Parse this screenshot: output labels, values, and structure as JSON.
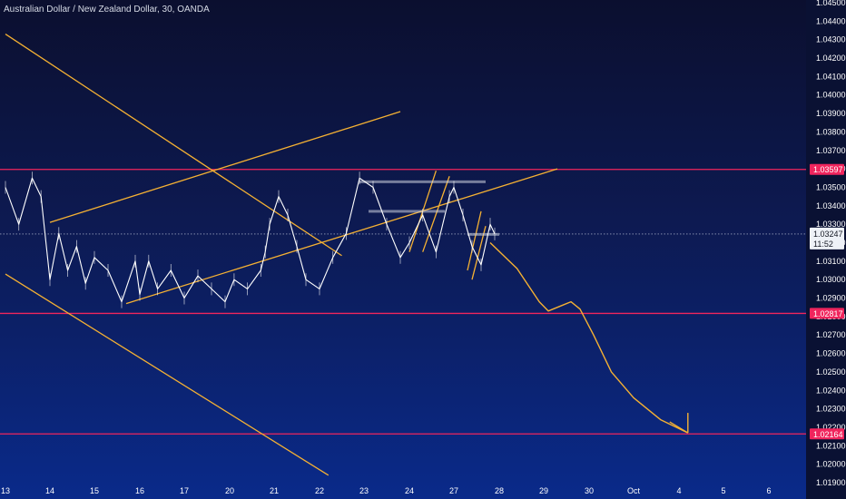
{
  "chart_data": {
    "type": "line",
    "title": "Australian Dollar / New Zealand Dollar, 30, OANDA",
    "x_tick_labels": [
      "13",
      "14",
      "15",
      "16",
      "17",
      "20",
      "21",
      "22",
      "23",
      "24",
      "27",
      "28",
      "29",
      "30",
      "Oct",
      "4",
      "5",
      "6"
    ],
    "y_tick_labels": [
      "1.04500",
      "1.04400",
      "1.04300",
      "1.04200",
      "1.04100",
      "1.04000",
      "1.03900",
      "1.03800",
      "1.03700",
      "1.03600",
      "1.03500",
      "1.03400",
      "1.03300",
      "1.03200",
      "1.03100",
      "1.03000",
      "1.02900",
      "1.02800",
      "1.02700",
      "1.02600",
      "1.02500",
      "1.02400",
      "1.02300",
      "1.02200",
      "1.02100",
      "1.02000",
      "1.01900"
    ],
    "ylim": [
      1.019,
      1.045
    ],
    "price_series": {
      "name": "",
      "x": [
        13.0,
        13.3,
        13.6,
        13.8,
        14.0,
        14.2,
        14.4,
        14.6,
        14.8,
        15.0,
        15.3,
        15.6,
        15.9,
        16.0,
        16.2,
        16.4,
        16.7,
        17.0,
        17.3,
        17.6,
        17.9,
        18.1,
        18.4,
        18.7,
        18.8,
        18.9,
        19.1,
        19.3,
        19.5,
        19.7,
        20.0,
        20.3,
        20.6,
        20.9,
        21.2,
        21.5,
        21.8,
        22.0,
        22.3,
        22.6,
        22.9,
        23.0,
        23.2,
        23.4,
        23.6,
        23.8,
        23.9
      ],
      "y": [
        1.035,
        1.033,
        1.0355,
        1.0345,
        1.03,
        1.0325,
        1.0305,
        1.0318,
        1.0298,
        1.0312,
        1.0305,
        1.0288,
        1.031,
        1.0292,
        1.031,
        1.0295,
        1.0305,
        1.029,
        1.0302,
        1.0295,
        1.0288,
        1.03,
        1.0295,
        1.0305,
        1.0315,
        1.033,
        1.0345,
        1.0335,
        1.0318,
        1.03,
        1.0295,
        1.0312,
        1.0325,
        1.0355,
        1.035,
        1.033,
        1.0312,
        1.032,
        1.0335,
        1.0315,
        1.0345,
        1.035,
        1.0335,
        1.0318,
        1.0308,
        1.033,
        1.03247
      ]
    },
    "horizontal_levels": [
      {
        "name": "resistance",
        "value": 1.03597,
        "label": "1.03597"
      },
      {
        "name": "support",
        "value": 1.02817,
        "label": "1.02817"
      },
      {
        "name": "target",
        "value": 1.02164,
        "label": "1.02164"
      }
    ],
    "current_price": {
      "value": "1.03247",
      "countdown": "11:52"
    },
    "trendlines": [
      {
        "name": "upper-descending",
        "x1": 12.4,
        "y1": 1.0433,
        "x2": 20.5,
        "y2": 1.0313
      },
      {
        "name": "lower-descending",
        "x1": 12.4,
        "y1": 1.0303,
        "x2": 20.2,
        "y2": 1.0194
      },
      {
        "name": "rising-upper",
        "x1": 14.0,
        "y1": 1.0331,
        "x2": 21.8,
        "y2": 1.0391
      },
      {
        "name": "rising-lower",
        "x1": 15.7,
        "y1": 1.0287,
        "x2": 25.3,
        "y2": 1.036
      },
      {
        "name": "small-channel-a",
        "x1": 22.0,
        "y1": 1.0315,
        "x2": 22.6,
        "y2": 1.0359
      },
      {
        "name": "small-channel-b",
        "x1": 22.3,
        "y1": 1.0315,
        "x2": 22.9,
        "y2": 1.0356
      },
      {
        "name": "small-channel-c",
        "x1": 23.3,
        "y1": 1.0305,
        "x2": 23.6,
        "y2": 1.0337
      },
      {
        "name": "small-channel-d",
        "x1": 23.4,
        "y1": 1.03,
        "x2": 23.7,
        "y2": 1.0329
      }
    ],
    "rectangles": [
      {
        "name": "range-top",
        "x1": 20.9,
        "x2": 23.7,
        "y": 1.0353
      },
      {
        "name": "range-mid",
        "x1": 21.1,
        "x2": 22.8,
        "y": 1.0337
      },
      {
        "name": "current-box",
        "x1": 23.3,
        "x2": 24.0,
        "y": 1.03245
      }
    ],
    "projection_path": {
      "x": [
        23.8,
        24.4,
        24.9,
        25.1,
        25.4,
        25.6,
        25.8,
        26.1,
        26.5,
        27.0,
        27.6,
        28.2
      ],
      "y": [
        1.032,
        1.0306,
        1.0288,
        1.0283,
        1.0286,
        1.0288,
        1.0284,
        1.027,
        1.025,
        1.0236,
        1.0224,
        1.0217
      ]
    },
    "grid": false,
    "legend": "none",
    "colors": {
      "trendline": "#f5b133",
      "level": "#f0255d",
      "price": "#ffffff",
      "rect": "#d0d4e0",
      "axis_bg": "#0a1133"
    }
  }
}
